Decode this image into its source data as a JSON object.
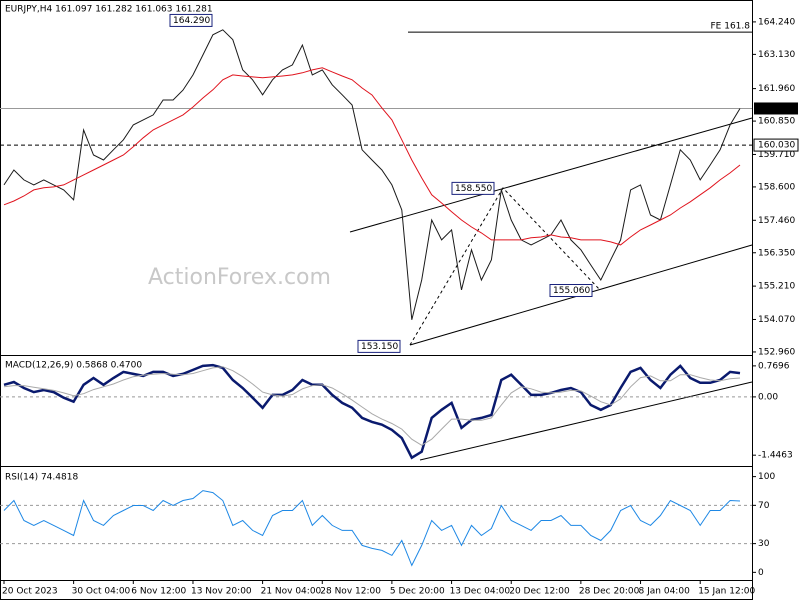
{
  "chart_data": [
    {
      "type": "line",
      "title": "EURJPY,H4  161.097 161.282 161.063 161.281",
      "watermark": "ActionForex.com",
      "ylim": [
        152.89,
        164.92
      ],
      "grid": false,
      "yticks": [
        {
          "value": 164.24,
          "label": "164.240"
        },
        {
          "value": 163.13,
          "label": "163.130"
        },
        {
          "value": 161.96,
          "label": "161.960"
        },
        {
          "value": 160.85,
          "label": "160.850"
        },
        {
          "value": 159.71,
          "label": "159.710"
        },
        {
          "value": 158.6,
          "label": "158.600"
        },
        {
          "value": 157.46,
          "label": "157.460"
        },
        {
          "value": 156.35,
          "label": "156.350"
        },
        {
          "value": 155.21,
          "label": "155.210"
        },
        {
          "value": 154.07,
          "label": "154.070"
        },
        {
          "value": 152.96,
          "label": "152.960"
        }
      ],
      "hlines": [
        {
          "value": 163.89,
          "label": "FE 161.8"
        },
        {
          "value": 161.281,
          "label": "161.281"
        },
        {
          "value": 160.03,
          "label": "160.030"
        }
      ],
      "annotations": [
        {
          "value": 164.29,
          "label": "164.290"
        },
        {
          "value": 158.55,
          "label": "158.550"
        },
        {
          "value": 155.06,
          "label": "155.060"
        },
        {
          "value": 153.15,
          "label": "153.150"
        }
      ],
      "series": [
        {
          "color": "#1a1a1a",
          "values": [
            158.67,
            159.18,
            158.84,
            158.67,
            158.84,
            158.67,
            158.5,
            158.16,
            160.55,
            159.69,
            159.52,
            159.87,
            160.21,
            160.72,
            160.89,
            161.06,
            161.57,
            161.57,
            161.91,
            162.43,
            163.11,
            163.8,
            163.97,
            163.63,
            162.6,
            162.26,
            161.75,
            162.26,
            162.6,
            162.77,
            163.45,
            162.43,
            162.6,
            162.09,
            161.75,
            161.4,
            159.87,
            159.52,
            159.18,
            158.67,
            157.81,
            154.06,
            155.42,
            157.47,
            156.79,
            157.13,
            155.08,
            156.45,
            155.42,
            156.11,
            158.5,
            157.47,
            156.79,
            156.62,
            156.79,
            156.96,
            157.47,
            156.79,
            156.45,
            155.93,
            155.42,
            156.11,
            156.79,
            158.5,
            158.67,
            157.64,
            157.47,
            158.67,
            159.87,
            159.52,
            158.84,
            159.35,
            159.87,
            160.72,
            161.28
          ]
        },
        {
          "color": "#e0141e",
          "values": [
            157.99,
            158.12,
            158.29,
            158.5,
            158.57,
            158.6,
            158.67,
            158.84,
            159.01,
            159.18,
            159.35,
            159.52,
            159.69,
            159.97,
            160.28,
            160.55,
            160.72,
            160.89,
            161.06,
            161.33,
            161.64,
            161.92,
            162.26,
            162.43,
            162.39,
            162.36,
            162.33,
            162.36,
            162.39,
            162.43,
            162.5,
            162.6,
            162.67,
            162.53,
            162.39,
            162.26,
            161.98,
            161.74,
            161.3,
            160.89,
            160.21,
            159.52,
            158.91,
            158.33,
            158.05,
            157.75,
            157.47,
            157.23,
            157.03,
            156.79,
            156.79,
            156.79,
            156.79,
            156.86,
            156.89,
            156.96,
            156.89,
            156.86,
            156.79,
            156.79,
            156.79,
            156.72,
            156.62,
            156.89,
            157.13,
            157.3,
            157.47,
            157.64,
            157.88,
            158.09,
            158.33,
            158.57,
            158.84,
            159.08,
            159.35
          ]
        }
      ]
    },
    {
      "type": "line",
      "title": "MACD(12,26,9) 0.5868 0.4700",
      "ylim": [
        -1.69,
        0.99
      ],
      "grid": true,
      "yticks": [
        0.7696,
        {
          "value": 0,
          "label": "0.00"
        },
        -1.4463
      ],
      "series": [
        {
          "color": "#0a1a6e",
          "values": [
            0.3,
            0.37,
            0.22,
            0.12,
            0.17,
            0.12,
            -0.02,
            -0.12,
            0.3,
            0.47,
            0.3,
            0.47,
            0.62,
            0.57,
            0.52,
            0.62,
            0.62,
            0.52,
            0.57,
            0.67,
            0.77,
            0.79,
            0.72,
            0.42,
            0.22,
            -0.02,
            -0.27,
            0.05,
            0.05,
            0.17,
            0.42,
            0.3,
            0.3,
            0.05,
            -0.15,
            -0.27,
            -0.52,
            -0.62,
            -0.69,
            -0.82,
            -1.02,
            -1.51,
            -1.36,
            -0.52,
            -0.32,
            -0.15,
            -0.77,
            -0.57,
            -0.52,
            -0.45,
            0.42,
            0.55,
            0.3,
            0.05,
            0.05,
            0.1,
            0.17,
            0.22,
            0.12,
            -0.2,
            -0.32,
            -0.2,
            0.22,
            0.62,
            0.72,
            0.42,
            0.22,
            0.55,
            0.77,
            0.47,
            0.35,
            0.35,
            0.42,
            0.62,
            0.59
          ]
        },
        {
          "color": "#a9a9a9",
          "values": [
            0.25,
            0.28,
            0.28,
            0.24,
            0.2,
            0.16,
            0.1,
            0.03,
            0.08,
            0.18,
            0.25,
            0.32,
            0.42,
            0.5,
            0.54,
            0.56,
            0.58,
            0.56,
            0.55,
            0.58,
            0.65,
            0.72,
            0.75,
            0.65,
            0.5,
            0.32,
            0.12,
            0.05,
            0.02,
            0.06,
            0.2,
            0.28,
            0.3,
            0.22,
            0.08,
            -0.08,
            -0.25,
            -0.42,
            -0.55,
            -0.66,
            -0.8,
            -1.05,
            -1.2,
            -1.05,
            -0.8,
            -0.55,
            -0.55,
            -0.58,
            -0.58,
            -0.52,
            -0.2,
            0.1,
            0.25,
            0.2,
            0.12,
            0.1,
            0.12,
            0.16,
            0.15,
            0.02,
            -0.12,
            -0.2,
            -0.05,
            0.25,
            0.48,
            0.52,
            0.4,
            0.4,
            0.55,
            0.55,
            0.48,
            0.42,
            0.4,
            0.45,
            0.47
          ]
        }
      ]
    },
    {
      "type": "line",
      "title": "RSI(14) 74.4818",
      "ylim": [
        -8,
        109
      ],
      "grid": true,
      "yticks": [
        100,
        70,
        30,
        0
      ],
      "categories": [
        "20 Oct 2023",
        null,
        null,
        null,
        null,
        null,
        null,
        "30 Oct 04:00",
        null,
        null,
        null,
        null,
        null,
        "6 Nov 12:00",
        null,
        null,
        null,
        null,
        null,
        "13 Nov 20:00",
        null,
        null,
        null,
        null,
        null,
        null,
        "21 Nov 04:00",
        null,
        null,
        null,
        null,
        null,
        "28 Nov 12:00",
        null,
        null,
        null,
        null,
        null,
        null,
        "5 Dec 20:00",
        null,
        null,
        null,
        null,
        null,
        "13 Dec 04:00",
        null,
        null,
        null,
        null,
        null,
        "20 Dec 12:00",
        null,
        null,
        null,
        null,
        null,
        null,
        "28 Dec 20:00",
        null,
        null,
        null,
        null,
        null,
        "8 Jan 04:00",
        null,
        null,
        null,
        null,
        null,
        "15 Jan 12:00",
        null,
        null,
        null,
        null
      ],
      "series": [
        {
          "color": "#1e88e5",
          "values": [
            64.6,
            75.0,
            54.2,
            49.0,
            54.2,
            49.0,
            43.8,
            38.5,
            75.0,
            54.2,
            49.0,
            59.4,
            64.6,
            69.8,
            69.8,
            64.6,
            75.0,
            69.8,
            75.0,
            77.1,
            85.4,
            83.3,
            75.0,
            49.0,
            54.2,
            43.8,
            38.5,
            59.4,
            64.6,
            64.6,
            75.0,
            49.0,
            59.4,
            49.0,
            43.8,
            43.8,
            28.1,
            25.0,
            22.9,
            17.7,
            33.3,
            7.3,
            28.1,
            54.2,
            43.8,
            49.0,
            28.1,
            49.0,
            38.5,
            45.8,
            69.8,
            54.2,
            49.0,
            43.8,
            54.2,
            54.2,
            59.4,
            49.0,
            49.0,
            38.5,
            33.3,
            43.8,
            64.6,
            69.8,
            54.2,
            49.0,
            59.4,
            75.0,
            69.8,
            64.6,
            49.0,
            64.6,
            64.6,
            75.0,
            74.5
          ]
        }
      ]
    }
  ]
}
